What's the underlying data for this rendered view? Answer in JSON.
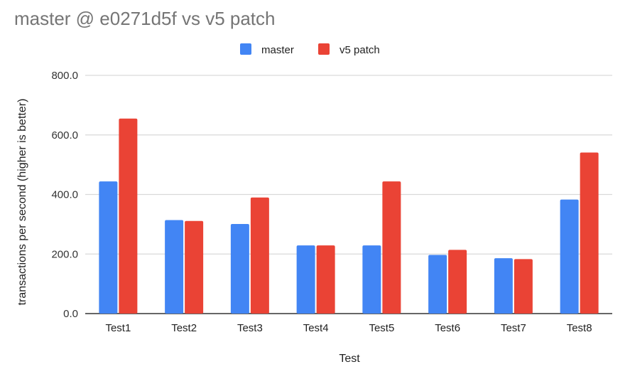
{
  "chart_data": {
    "type": "bar",
    "title": "master @ e0271d5f vs v5 patch",
    "xlabel": "Test",
    "ylabel": "transactions per second (higher is better)",
    "ylim": [
      0,
      800
    ],
    "yticks": [
      0,
      200,
      400,
      600,
      800
    ],
    "ytick_labels": [
      "0.0",
      "200.0",
      "400.0",
      "600.0",
      "800.0"
    ],
    "grid": true,
    "legend_position": "top-center",
    "categories": [
      "Test1",
      "Test2",
      "Test3",
      "Test4",
      "Test5",
      "Test6",
      "Test7",
      "Test8"
    ],
    "series": [
      {
        "name": "master",
        "color": "#4285f4",
        "values": [
          444,
          314,
          301,
          229,
          229,
          197,
          186,
          383
        ]
      },
      {
        "name": "v5 patch",
        "color": "#ea4335",
        "values": [
          655,
          311,
          390,
          229,
          444,
          214,
          183,
          541
        ]
      }
    ]
  }
}
